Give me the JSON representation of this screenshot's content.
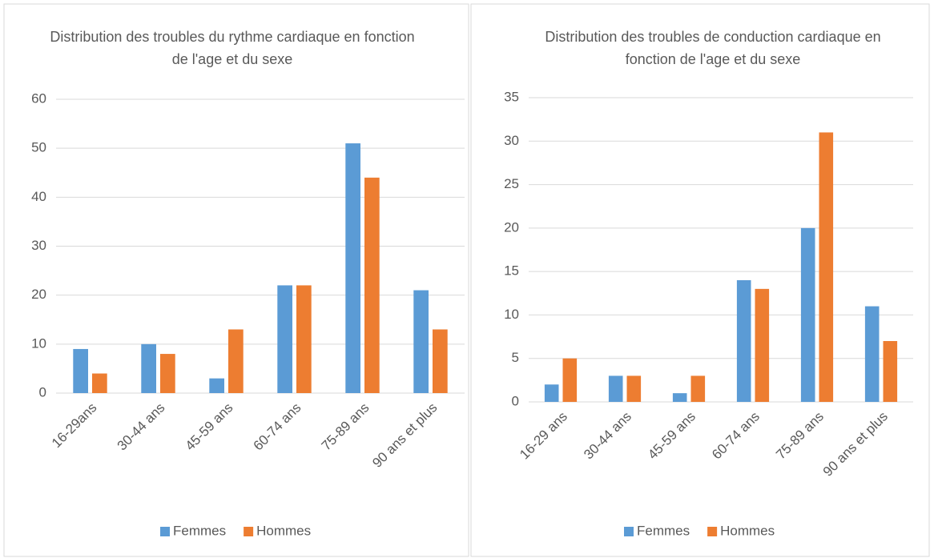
{
  "chart_data": [
    {
      "type": "bar",
      "title": "Distribution des troubles du rythme cardiaque en fonction de l'age et du sexe",
      "categories": [
        "16-29ans",
        "30-44 ans",
        "45-59 ans",
        "60-74 ans",
        "75-89 ans",
        "90 ans et plus"
      ],
      "series": [
        {
          "name": "Femmes",
          "color": "#5b9bd5",
          "values": [
            9,
            10,
            3,
            22,
            51,
            21
          ]
        },
        {
          "name": "Hommes",
          "color": "#ed7d31",
          "values": [
            4,
            8,
            13,
            22,
            44,
            13
          ]
        }
      ],
      "ylim": [
        0,
        60
      ],
      "yticks": [
        0,
        10,
        20,
        30,
        40,
        50,
        60
      ],
      "grid": true,
      "legend": "bottom"
    },
    {
      "type": "bar",
      "title": "Distribution des troubles de conduction cardiaque en fonction de l'age et du sexe",
      "categories": [
        "16-29 ans",
        "30-44 ans",
        "45-59 ans",
        "60-74 ans",
        "75-89 ans",
        "90 ans et plus"
      ],
      "series": [
        {
          "name": "Femmes",
          "color": "#5b9bd5",
          "values": [
            2,
            3,
            1,
            14,
            20,
            11
          ]
        },
        {
          "name": "Hommes",
          "color": "#ed7d31",
          "values": [
            5,
            3,
            3,
            13,
            31,
            7
          ]
        }
      ],
      "ylim": [
        0,
        35
      ],
      "yticks": [
        0,
        5,
        10,
        15,
        20,
        25,
        30,
        35
      ],
      "grid": true,
      "legend": "bottom"
    }
  ]
}
